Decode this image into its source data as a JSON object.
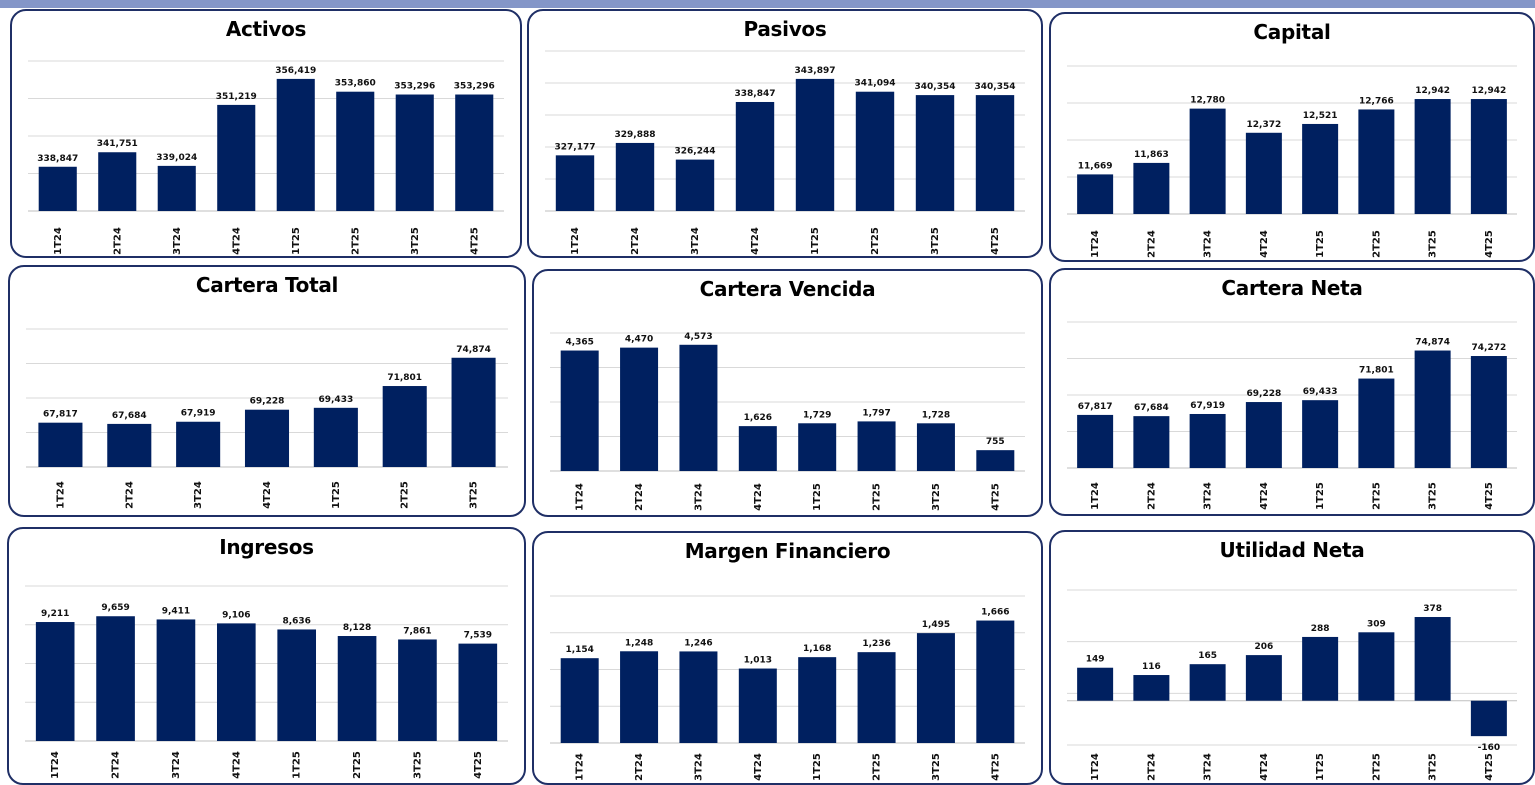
{
  "colors": {
    "bar": "#002060",
    "panel_border": "#1f2f66",
    "grid": "#d9d9d9",
    "header_band": "#8496c8"
  },
  "chart_data": [
    {
      "type": "bar",
      "title": "Activos",
      "categories": [
        "1T24",
        "2T24",
        "3T24",
        "4T24",
        "1T25",
        "2T25",
        "3T25",
        "4T25"
      ],
      "values": [
        338847,
        341751,
        339024,
        351219,
        356419,
        353860,
        353296,
        353296
      ],
      "value_labels": [
        "338,847",
        "341,751",
        "339,024",
        "351,219",
        "356,419",
        "353,860",
        "353,296",
        "353,296"
      ],
      "ylim": [
        330000,
        360000
      ],
      "grid": true
    },
    {
      "type": "bar",
      "title": "Pasivos",
      "categories": [
        "1T24",
        "2T24",
        "3T24",
        "4T24",
        "1T25",
        "2T25",
        "3T25",
        "4T25"
      ],
      "values": [
        327177,
        329888,
        326244,
        338847,
        343897,
        341094,
        340354,
        340354
      ],
      "value_labels": [
        "327,177",
        "329,888",
        "326,244",
        "338,847",
        "343,897",
        "341,094",
        "340,354",
        "340,354"
      ],
      "ylim": [
        315000,
        350000
      ],
      "grid": true
    },
    {
      "type": "bar",
      "title": "Capital",
      "categories": [
        "1T24",
        "2T24",
        "3T24",
        "4T24",
        "1T25",
        "2T25",
        "3T25",
        "4T25"
      ],
      "values": [
        11669,
        11863,
        12780,
        12372,
        12521,
        12766,
        12942,
        12942
      ],
      "value_labels": [
        "11,669",
        "11,863",
        "12,780",
        "12,372",
        "12,521",
        "12,766",
        "12,942",
        "12,942"
      ],
      "ylim": [
        11000,
        13500
      ],
      "grid": true
    },
    {
      "type": "bar",
      "title": "Cartera Total",
      "categories": [
        "1T24",
        "2T24",
        "3T24",
        "4T24",
        "1T25",
        "2T25",
        "3T25"
      ],
      "values": [
        67817,
        67684,
        67919,
        69228,
        69433,
        71801,
        74874
      ],
      "value_labels": [
        "67,817",
        "67,684",
        "67,919",
        "69,228",
        "69,433",
        "71,801",
        "74,874"
      ],
      "ylim": [
        63000,
        78000
      ],
      "grid": true
    },
    {
      "type": "bar",
      "title": "Cartera Vencida",
      "categories": [
        "1T24",
        "2T24",
        "3T24",
        "4T24",
        "1T25",
        "2T25",
        "3T25",
        "4T25"
      ],
      "values": [
        4365,
        4470,
        4573,
        1626,
        1729,
        1797,
        1728,
        755
      ],
      "value_labels": [
        "4,365",
        "4,470",
        "4,573",
        "1,626",
        "1,729",
        "1,797",
        "1,728",
        "755"
      ],
      "ylim": [
        0,
        5000
      ],
      "grid": true
    },
    {
      "type": "bar",
      "title": "Cartera Neta",
      "categories": [
        "1T24",
        "2T24",
        "3T24",
        "4T24",
        "1T25",
        "2T25",
        "3T25",
        "4T25"
      ],
      "values": [
        67817,
        67684,
        67919,
        69228,
        69433,
        71801,
        74874,
        74272
      ],
      "value_labels": [
        "67,817",
        "67,684",
        "67,919",
        "69,228",
        "69,433",
        "71,801",
        "74,874",
        "74,272"
      ],
      "ylim": [
        62000,
        78000
      ],
      "grid": true
    },
    {
      "type": "bar",
      "title": "Ingresos",
      "categories": [
        "1T24",
        "2T24",
        "3T24",
        "4T24",
        "1T25",
        "2T25",
        "3T25",
        "4T25"
      ],
      "values": [
        9211,
        9659,
        9411,
        9106,
        8636,
        8128,
        7861,
        7539
      ],
      "value_labels": [
        "9,211",
        "9,659",
        "9,411",
        "9,106",
        "8,636",
        "8,128",
        "7,861",
        "7,539"
      ],
      "ylim": [
        0,
        12000
      ],
      "grid": true
    },
    {
      "type": "bar",
      "title": "Margen Financiero",
      "categories": [
        "1T24",
        "2T24",
        "3T24",
        "4T24",
        "1T25",
        "2T25",
        "3T25",
        "4T25"
      ],
      "values": [
        1154,
        1248,
        1246,
        1013,
        1168,
        1236,
        1495,
        1666
      ],
      "value_labels": [
        "1,154",
        "1,248",
        "1,246",
        "1,013",
        "1,168",
        "1,236",
        "1,495",
        "1,666"
      ],
      "ylim": [
        0,
        2000
      ],
      "grid": true
    },
    {
      "type": "bar",
      "title": "Utilidad Neta",
      "categories": [
        "1T24",
        "2T24",
        "3T24",
        "4T24",
        "1T25",
        "2T25",
        "3T25",
        "4T25"
      ],
      "values": [
        149,
        116,
        165,
        206,
        288,
        309,
        378,
        -160
      ],
      "value_labels": [
        "149",
        "116",
        "165",
        "206",
        "288",
        "309",
        "378",
        "-160"
      ],
      "ylim": [
        -200,
        500
      ],
      "grid": true
    }
  ]
}
